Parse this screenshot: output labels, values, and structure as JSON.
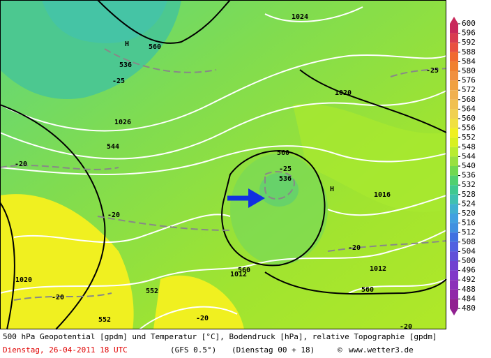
{
  "map": {
    "labels": [
      "H",
      "560",
      "1024",
      "536",
      "-25",
      "1020",
      "1026",
      "544",
      "-20",
      "560",
      "-25",
      "536",
      "H",
      "1016",
      "-20",
      "-25",
      "-20",
      "560",
      "1012",
      "1012",
      "1020",
      "552",
      "560",
      "-20",
      "-20",
      "-20",
      "552"
    ]
  },
  "colorbar": {
    "labels": [
      600,
      596,
      592,
      588,
      584,
      580,
      576,
      572,
      568,
      564,
      560,
      556,
      552,
      548,
      544,
      540,
      536,
      532,
      528,
      524,
      520,
      516,
      512,
      508,
      504,
      500,
      496,
      492,
      488,
      484,
      480
    ],
    "colors": [
      "#c8285a",
      "#d83c50",
      "#e85040",
      "#f06a30",
      "#f08030",
      "#f09040",
      "#f0a040",
      "#f0b050",
      "#f0c050",
      "#f0d050",
      "#f0e040",
      "#f0f020",
      "#d8f020",
      "#b8ec30",
      "#98e040",
      "#70d850",
      "#50d070",
      "#40c890",
      "#40c0b0",
      "#40b0d0",
      "#40a0e0",
      "#4090e0",
      "#4070e0",
      "#5060e0",
      "#6050d8",
      "#7040d0",
      "#8038c8",
      "#8c30b8",
      "#9028a8",
      "#902090"
    ]
  },
  "footer": {
    "description": "500 hPa Geopotential [gpdm] und Temperatur [°C], Bodendruck [hPa], relative Topographie [gpdm]",
    "date": "Dienstag, 26-04-2011  18 UTC",
    "model": "(GFS 0.5°)",
    "run": "(Dienstag 00 + 18)",
    "copyright": "©",
    "site": "www.wetter3.de"
  }
}
